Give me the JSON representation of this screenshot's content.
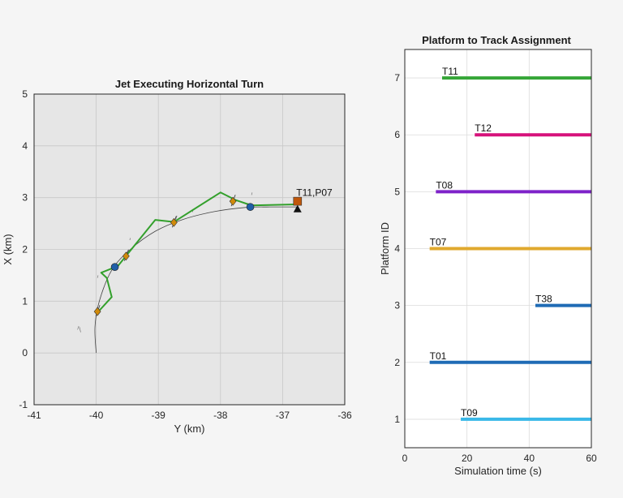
{
  "chart_data": [
    {
      "type": "line",
      "title": "Jet Executing Horizontal Turn",
      "xlabel": "Y (km)",
      "ylabel": "X (km)",
      "xlim": [
        -41,
        -36
      ],
      "ylim": [
        -1,
        5
      ],
      "xticks": [
        "-41",
        "-40",
        "-39",
        "-38",
        "-37",
        "-36"
      ],
      "yticks": [
        "-1",
        "0",
        "1",
        "2",
        "3",
        "4",
        "5"
      ],
      "grid": true,
      "background": "#e6e6e6",
      "colors": {
        "track": "#33a02c",
        "truth": "#444444",
        "platform": "#d08a0a",
        "detection": "#1f5fa8",
        "target": "#c0570a"
      },
      "truth_path": [
        [
          -40.0,
          0.0
        ],
        [
          -40.02,
          0.5
        ],
        [
          -39.95,
          1.0
        ],
        [
          -39.75,
          1.6
        ],
        [
          -39.45,
          2.0
        ],
        [
          -39.05,
          2.35
        ],
        [
          -38.6,
          2.58
        ],
        [
          -38.1,
          2.73
        ],
        [
          -37.6,
          2.81
        ],
        [
          -37.2,
          2.82
        ],
        [
          -36.75,
          2.82
        ]
      ],
      "track_path": [
        [
          -39.98,
          0.78
        ],
        [
          -39.75,
          1.08
        ],
        [
          -39.83,
          1.45
        ],
        [
          -39.92,
          1.55
        ],
        [
          -39.65,
          1.68
        ],
        [
          -39.05,
          2.57
        ],
        [
          -38.75,
          2.53
        ],
        [
          -38.0,
          3.1
        ],
        [
          -37.75,
          2.95
        ],
        [
          -37.5,
          2.85
        ],
        [
          -36.78,
          2.87
        ]
      ],
      "platforms": [
        [
          -39.98,
          0.8
        ],
        [
          -39.52,
          1.87
        ],
        [
          -38.75,
          2.52
        ],
        [
          -37.8,
          2.93
        ]
      ],
      "detections": [
        [
          -39.7,
          1.66
        ],
        [
          -37.52,
          2.82
        ]
      ],
      "target": [
        -36.76,
        2.93
      ],
      "sensor": [
        -36.76,
        2.78
      ],
      "clutter": [
        [
          -40.3,
          0.45,
          -40.28,
          0.52
        ],
        [
          -40.27,
          0.5,
          -40.25,
          0.4
        ],
        [
          -39.98,
          1.45,
          -39.97,
          1.5
        ],
        [
          -39.46,
          2.18,
          -39.45,
          2.22
        ],
        [
          -38.72,
          2.58,
          -38.7,
          2.65
        ],
        [
          -38.45,
          2.72,
          -38.44,
          2.78
        ],
        [
          -37.5,
          3.05,
          -37.49,
          3.1
        ]
      ],
      "annotation": {
        "text": "T11,P07",
        "x": -36.78,
        "y": 3.0
      }
    },
    {
      "type": "bar",
      "title": "Platform to Track Assignment",
      "xlabel": "Simulation time (s)",
      "ylabel": "Platform ID",
      "xlim": [
        0,
        60
      ],
      "ylim": [
        0.5,
        7.5
      ],
      "xticks": [
        "0",
        "20",
        "40",
        "60"
      ],
      "yticks": [
        "1",
        "2",
        "3",
        "4",
        "5",
        "6",
        "7"
      ],
      "grid": true,
      "background": "#ffffff",
      "segments": [
        {
          "label": "T11",
          "platform": 7,
          "start": 12,
          "end": 60,
          "color": "#35a637"
        },
        {
          "label": "T12",
          "platform": 6,
          "start": 22.5,
          "end": 60,
          "color": "#d6127b"
        },
        {
          "label": "T08",
          "platform": 5,
          "start": 10,
          "end": 60,
          "color": "#7e22c9"
        },
        {
          "label": "T07",
          "platform": 4,
          "start": 8,
          "end": 60,
          "color": "#e0a92e"
        },
        {
          "label": "T38",
          "platform": 3,
          "start": 42,
          "end": 60,
          "color": "#1f6bb5"
        },
        {
          "label": "T01",
          "platform": 2,
          "start": 8,
          "end": 60,
          "color": "#1f6bb5"
        },
        {
          "label": "T09",
          "platform": 1,
          "start": 18,
          "end": 60,
          "color": "#3ab8e8"
        }
      ]
    }
  ]
}
